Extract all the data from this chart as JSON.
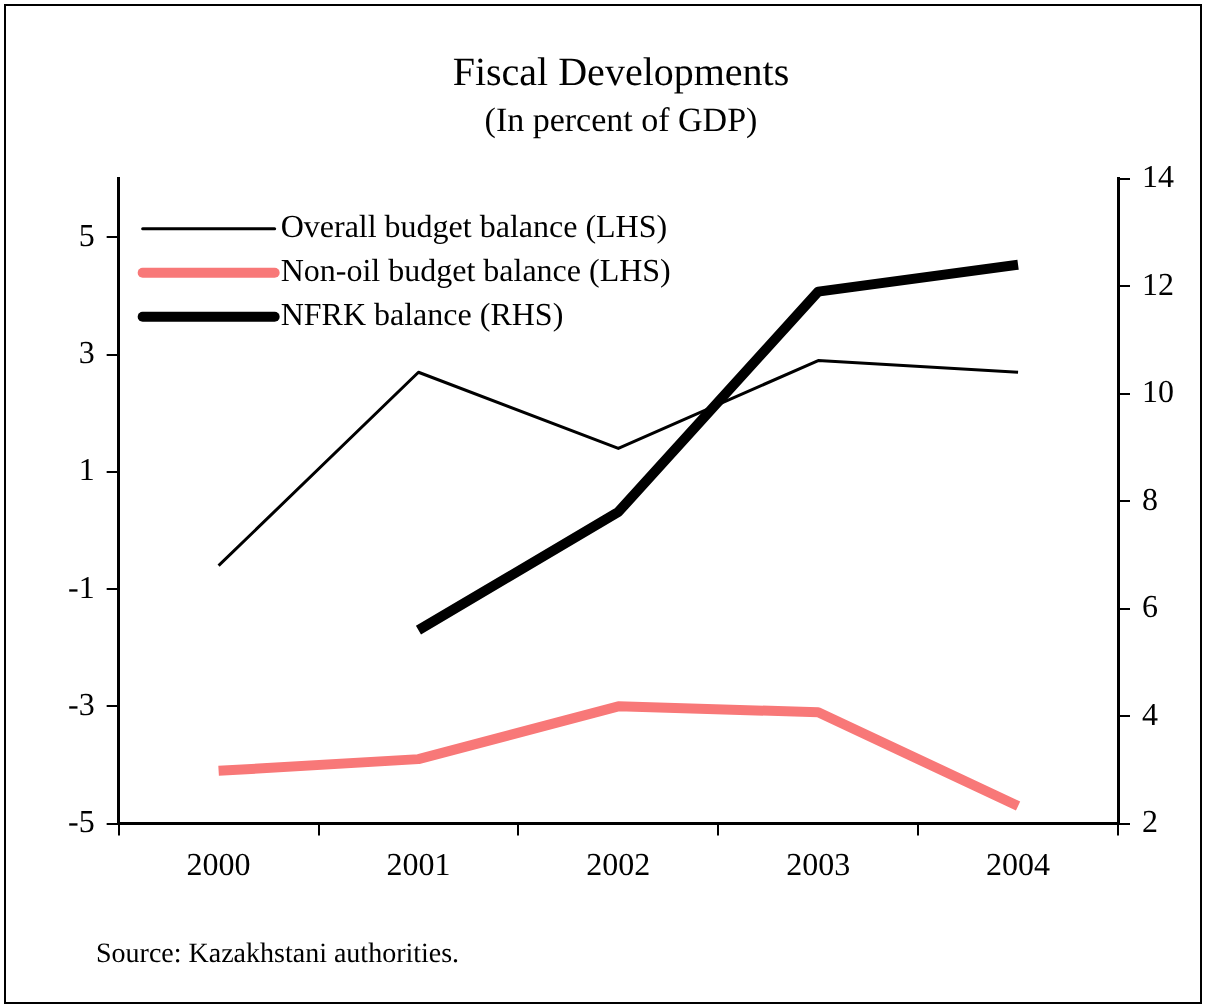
{
  "chart_data": {
    "type": "line",
    "title": "Fiscal Developments",
    "subtitle": "(In percent of GDP)",
    "categories": [
      "2000",
      "2001",
      "2002",
      "2003",
      "2004"
    ],
    "series": [
      {
        "name": "Overall budget balance (LHS)",
        "color": "#000000",
        "values": [
          -0.6,
          2.7,
          1.4,
          2.9,
          2.7
        ]
      },
      {
        "name": "Non-oil budget balance (LHS)",
        "color": "#f87878",
        "values": [
          -4.1,
          -3.9,
          -3.0,
          -3.1,
          -4.7
        ]
      },
      {
        "name": "NFRK balance (RHS)",
        "color": "#000000",
        "axis": "y2",
        "values": [
          null,
          5.6,
          7.8,
          11.9,
          12.4
        ]
      }
    ],
    "ylim": [
      -5,
      6
    ],
    "yticks": [
      -5,
      -3,
      -1,
      1,
      3,
      5
    ],
    "y2lim": [
      2,
      14
    ],
    "y2ticks": [
      2,
      4,
      6,
      8,
      10,
      12,
      14
    ],
    "grid": false,
    "legend": "top left",
    "marker": "none",
    "line_style": "solid",
    "annotations": [
      "Source: Kazakhstani authorities."
    ]
  }
}
